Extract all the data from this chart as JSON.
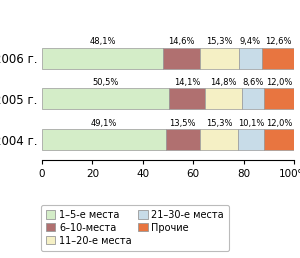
{
  "years": [
    "2006 г.",
    "2005 г.",
    "2004 г."
  ],
  "values": [
    [
      48.1,
      14.6,
      15.3,
      9.4,
      12.6
    ],
    [
      50.5,
      14.1,
      14.8,
      8.6,
      12.0
    ],
    [
      49.1,
      13.5,
      15.3,
      10.1,
      12.0
    ]
  ],
  "labels": [
    [
      "48,1%",
      "14,6%",
      "15,3%",
      "9,4%",
      "12,6%"
    ],
    [
      "50,5%",
      "14,1%",
      "14,8%",
      "8,6%",
      "12,0%"
    ],
    [
      "49,1%",
      "13,5%",
      "15,3%",
      "10,1%",
      "12,0%"
    ]
  ],
  "colors": [
    "#d4edc8",
    "#b07070",
    "#f5f0c5",
    "#c8dce8",
    "#e87540"
  ],
  "edge_color": "#999999",
  "xticks": [
    0,
    20,
    40,
    60,
    80,
    100
  ],
  "xtick_labels": [
    "0",
    "20",
    "40",
    "60",
    "80",
    "100%"
  ],
  "bar_height": 0.52,
  "legend_labels": [
    "1–5-е места",
    "6–10-места",
    "11–20-е места",
    "21–30-е места",
    "Прочие"
  ],
  "text_fontsize": 6.0,
  "ytick_fontsize": 8.5,
  "xtick_fontsize": 7.5,
  "legend_fontsize": 7.0
}
